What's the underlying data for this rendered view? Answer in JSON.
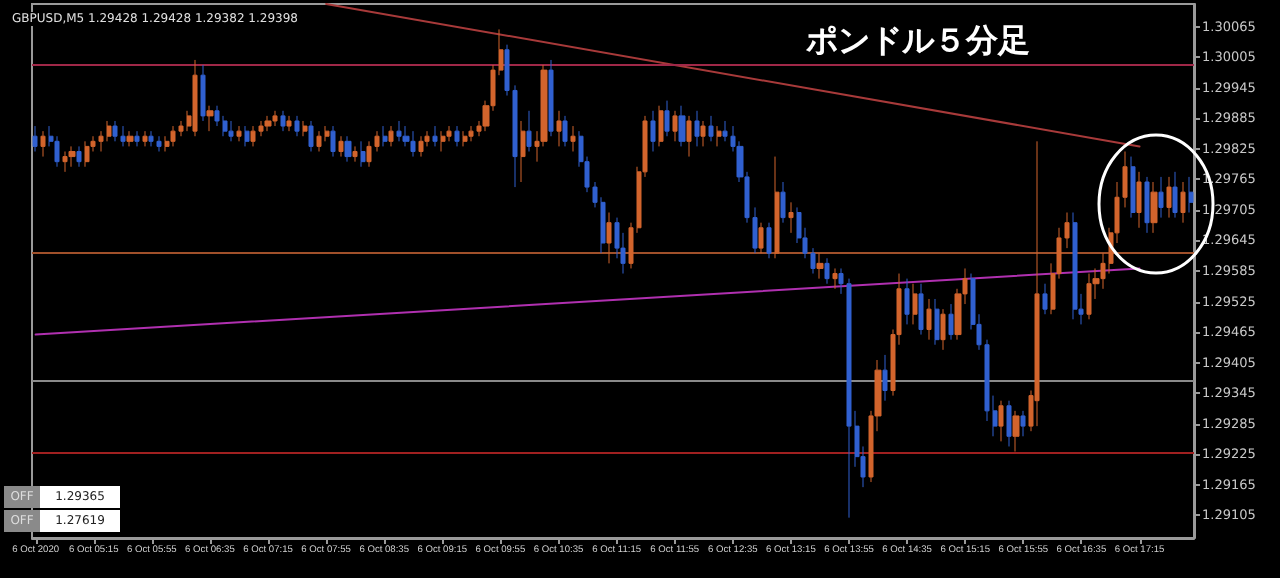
{
  "chart_data": {
    "type": "candlestick",
    "title": "ポンドル５分足",
    "annotations": [
      "GBPUSD,M5  1.29428 1.29428 1.29382 1.29398",
      "OFF 1.29365",
      "OFF 1.27619"
    ],
    "categories": [
      "6 Oct 2020",
      null,
      null,
      null,
      null,
      null,
      null,
      null,
      "6 Oct 05:15",
      null,
      null,
      null,
      null,
      null,
      null,
      null,
      "6 Oct 05:55",
      null,
      null,
      null,
      null,
      null,
      null,
      null,
      "6 Oct 06:35",
      null,
      null,
      null,
      null,
      null,
      null,
      null,
      "6 Oct 07:15",
      null,
      null,
      null,
      null,
      null,
      null,
      null,
      "6 Oct 07:55",
      null,
      null,
      null,
      null,
      null,
      null,
      null,
      "6 Oct 08:35",
      null,
      null,
      null,
      null,
      null,
      null,
      null,
      "6 Oct 09:15",
      null,
      null,
      null,
      null,
      null,
      null,
      null,
      "6 Oct 09:55",
      null,
      null,
      null,
      null,
      null,
      null,
      null,
      "6 Oct 10:35",
      null,
      null,
      null,
      null,
      null,
      null,
      null,
      "6 Oct 11:15",
      null,
      null,
      null,
      null,
      null,
      null,
      null,
      "6 Oct 11:55",
      null,
      null,
      null,
      null,
      null,
      null,
      null,
      "6 Oct 12:35",
      null,
      null,
      null,
      null,
      null,
      null,
      null,
      "6 Oct 13:15",
      null,
      null,
      null,
      null,
      null,
      null,
      null,
      "6 Oct 13:55",
      null,
      null,
      null,
      null,
      null,
      null,
      null,
      "6 Oct 14:35",
      null,
      null,
      null,
      null,
      null,
      null,
      null,
      "6 Oct 15:15",
      null,
      null,
      null,
      null,
      null,
      null,
      null,
      "6 Oct 15:55",
      null,
      null,
      null,
      null,
      null,
      null,
      null,
      "6 Oct 16:35",
      null,
      null,
      null,
      null,
      null,
      null,
      null,
      "6 Oct 17:15",
      null,
      null,
      null,
      null,
      null,
      null,
      null
    ],
    "ohlc": [
      [
        1.2985,
        1.2987,
        1.2982,
        1.2983
      ],
      [
        1.2983,
        1.2986,
        1.2981,
        1.2985
      ],
      [
        1.2985,
        1.2987,
        1.2983,
        1.2984
      ],
      [
        1.2984,
        1.2985,
        1.2979,
        1.298
      ],
      [
        1.298,
        1.2982,
        1.2978,
        1.2981
      ],
      [
        1.2981,
        1.2983,
        1.2979,
        1.2982
      ],
      [
        1.2982,
        1.2983,
        1.2979,
        1.298
      ],
      [
        1.298,
        1.2984,
        1.2979,
        1.2983
      ],
      [
        1.2983,
        1.2985,
        1.2982,
        1.2984
      ],
      [
        1.2984,
        1.2986,
        1.2982,
        1.2985
      ],
      [
        1.2985,
        1.2988,
        1.2984,
        1.2987
      ],
      [
        1.2987,
        1.2988,
        1.2984,
        1.2985
      ],
      [
        1.2985,
        1.2987,
        1.2983,
        1.2984
      ],
      [
        1.2984,
        1.2986,
        1.2983,
        1.2985
      ],
      [
        1.2985,
        1.2986,
        1.2983,
        1.2984
      ],
      [
        1.2984,
        1.2986,
        1.2983,
        1.2985
      ],
      [
        1.2985,
        1.2986,
        1.2983,
        1.2984
      ],
      [
        1.2984,
        1.2985,
        1.2982,
        1.2983
      ],
      [
        1.2983,
        1.2985,
        1.2982,
        1.2984
      ],
      [
        1.2984,
        1.2987,
        1.2983,
        1.2986
      ],
      [
        1.2986,
        1.2988,
        1.2985,
        1.2987
      ],
      [
        1.2987,
        1.299,
        1.2986,
        1.2989
      ],
      [
        1.2986,
        1.3,
        1.2985,
        1.2997
      ],
      [
        1.2997,
        1.2999,
        1.2988,
        1.2989
      ],
      [
        1.2989,
        1.2991,
        1.2986,
        1.299
      ],
      [
        1.299,
        1.2991,
        1.2987,
        1.2988
      ],
      [
        1.2988,
        1.2989,
        1.2985,
        1.2986
      ],
      [
        1.2986,
        1.2988,
        1.2984,
        1.2985
      ],
      [
        1.2985,
        1.2987,
        1.2984,
        1.2986
      ],
      [
        1.2986,
        1.2987,
        1.2983,
        1.2984
      ],
      [
        1.2984,
        1.2987,
        1.2983,
        1.2986
      ],
      [
        1.2986,
        1.2988,
        1.2985,
        1.2987
      ],
      [
        1.2987,
        1.2989,
        1.2986,
        1.2988
      ],
      [
        1.2988,
        1.299,
        1.2987,
        1.2989
      ],
      [
        1.2989,
        1.299,
        1.2986,
        1.2987
      ],
      [
        1.2987,
        1.2989,
        1.2986,
        1.2988
      ],
      [
        1.2988,
        1.2989,
        1.2985,
        1.2986
      ],
      [
        1.2986,
        1.2988,
        1.2985,
        1.2987
      ],
      [
        1.2987,
        1.2988,
        1.2982,
        1.2983
      ],
      [
        1.2983,
        1.2986,
        1.2982,
        1.2985
      ],
      [
        1.2985,
        1.2987,
        1.2984,
        1.2986
      ],
      [
        1.2986,
        1.2987,
        1.2981,
        1.2982
      ],
      [
        1.2982,
        1.2985,
        1.2981,
        1.2984
      ],
      [
        1.2984,
        1.2985,
        1.298,
        1.2981
      ],
      [
        1.2981,
        1.2983,
        1.298,
        1.2982
      ],
      [
        1.2982,
        1.2984,
        1.2979,
        1.298
      ],
      [
        1.298,
        1.2984,
        1.2979,
        1.2983
      ],
      [
        1.2983,
        1.2986,
        1.2982,
        1.2985
      ],
      [
        1.2985,
        1.2987,
        1.2983,
        1.2984
      ],
      [
        1.2984,
        1.2987,
        1.2983,
        1.2986
      ],
      [
        1.2986,
        1.2988,
        1.2984,
        1.2985
      ],
      [
        1.2985,
        1.2987,
        1.2983,
        1.2984
      ],
      [
        1.2984,
        1.2986,
        1.2981,
        1.2982
      ],
      [
        1.2982,
        1.2985,
        1.2981,
        1.2984
      ],
      [
        1.2984,
        1.2986,
        1.2983,
        1.2985
      ],
      [
        1.2985,
        1.2987,
        1.2983,
        1.2984
      ],
      [
        1.2984,
        1.2986,
        1.2982,
        1.2985
      ],
      [
        1.2985,
        1.2987,
        1.2984,
        1.2986
      ],
      [
        1.2986,
        1.2987,
        1.2983,
        1.2984
      ],
      [
        1.2984,
        1.2986,
        1.2983,
        1.2985
      ],
      [
        1.2985,
        1.2987,
        1.2984,
        1.2986
      ],
      [
        1.2986,
        1.2988,
        1.2985,
        1.2987
      ],
      [
        1.2987,
        1.2992,
        1.2986,
        1.2991
      ],
      [
        1.2991,
        1.2999,
        1.299,
        1.2998
      ],
      [
        1.2998,
        1.3006,
        1.2997,
        1.3002
      ],
      [
        1.3002,
        1.3003,
        1.2993,
        1.2994
      ],
      [
        1.2994,
        1.2995,
        1.2975,
        1.2981
      ],
      [
        1.2981,
        1.2988,
        1.2976,
        1.2986
      ],
      [
        1.2986,
        1.299,
        1.2982,
        1.2983
      ],
      [
        1.2983,
        1.2986,
        1.298,
        1.2984
      ],
      [
        1.2984,
        1.2999,
        1.2983,
        1.2998
      ],
      [
        1.2998,
        1.3,
        1.2985,
        1.2986
      ],
      [
        1.2986,
        1.299,
        1.2983,
        1.2988
      ],
      [
        1.2988,
        1.2989,
        1.2983,
        1.2984
      ],
      [
        1.2984,
        1.2987,
        1.2982,
        1.2985
      ],
      [
        1.2985,
        1.2986,
        1.2979,
        1.298
      ],
      [
        1.298,
        1.2981,
        1.2974,
        1.2975
      ],
      [
        1.2975,
        1.2976,
        1.2971,
        1.2972
      ],
      [
        1.2972,
        1.2973,
        1.2962,
        1.2964
      ],
      [
        1.2964,
        1.297,
        1.296,
        1.2968
      ],
      [
        1.2968,
        1.2969,
        1.2961,
        1.2963
      ],
      [
        1.2963,
        1.2966,
        1.2958,
        1.296
      ],
      [
        1.296,
        1.2968,
        1.2959,
        1.2967
      ],
      [
        1.2967,
        1.2979,
        1.2966,
        1.2978
      ],
      [
        1.2978,
        1.2989,
        1.2977,
        1.2988
      ],
      [
        1.2988,
        1.299,
        1.2982,
        1.2984
      ],
      [
        1.2984,
        1.2991,
        1.2983,
        1.299
      ],
      [
        1.299,
        1.2992,
        1.2985,
        1.2986
      ],
      [
        1.2986,
        1.299,
        1.2984,
        1.2989
      ],
      [
        1.2989,
        1.2991,
        1.2983,
        1.2984
      ],
      [
        1.2984,
        1.2989,
        1.2981,
        1.2988
      ],
      [
        1.2988,
        1.299,
        1.2983,
        1.2985
      ],
      [
        1.2985,
        1.2988,
        1.2983,
        1.2987
      ],
      [
        1.2987,
        1.2989,
        1.2984,
        1.2985
      ],
      [
        1.2985,
        1.2987,
        1.2983,
        1.2986
      ],
      [
        1.2986,
        1.2988,
        1.2984,
        1.2985
      ],
      [
        1.2985,
        1.2987,
        1.2982,
        1.2983
      ],
      [
        1.2983,
        1.2984,
        1.2976,
        1.2977
      ],
      [
        1.2977,
        1.2978,
        1.2968,
        1.2969
      ],
      [
        1.2969,
        1.2971,
        1.2962,
        1.2963
      ],
      [
        1.2963,
        1.2968,
        1.2962,
        1.2967
      ],
      [
        1.2967,
        1.2968,
        1.2961,
        1.2962
      ],
      [
        1.2962,
        1.2981,
        1.2961,
        1.2974
      ],
      [
        1.2974,
        1.2976,
        1.2968,
        1.2969
      ],
      [
        1.2969,
        1.2972,
        1.2966,
        1.297
      ],
      [
        1.297,
        1.2971,
        1.2964,
        1.2965
      ],
      [
        1.2965,
        1.2967,
        1.2961,
        1.2962
      ],
      [
        1.2962,
        1.2963,
        1.2958,
        1.2959
      ],
      [
        1.2959,
        1.2962,
        1.2957,
        1.296
      ],
      [
        1.296,
        1.2961,
        1.2956,
        1.2957
      ],
      [
        1.2957,
        1.2959,
        1.2955,
        1.2958
      ],
      [
        1.2958,
        1.2959,
        1.2954,
        1.2956
      ],
      [
        1.2956,
        1.2957,
        1.291,
        1.2928
      ],
      [
        1.2928,
        1.2931,
        1.292,
        1.2922
      ],
      [
        1.2922,
        1.2924,
        1.2916,
        1.2918
      ],
      [
        1.2918,
        1.2931,
        1.2917,
        1.293
      ],
      [
        1.293,
        1.2941,
        1.2927,
        1.2939
      ],
      [
        1.2939,
        1.2942,
        1.2933,
        1.2935
      ],
      [
        1.2935,
        1.2947,
        1.2934,
        1.2946
      ],
      [
        1.2946,
        1.2958,
        1.2944,
        1.2955
      ],
      [
        1.2955,
        1.2957,
        1.2948,
        1.295
      ],
      [
        1.295,
        1.2956,
        1.2948,
        1.2954
      ],
      [
        1.2954,
        1.2956,
        1.2946,
        1.2947
      ],
      [
        1.2947,
        1.2953,
        1.2945,
        1.2951
      ],
      [
        1.2951,
        1.2953,
        1.2944,
        1.2945
      ],
      [
        1.2945,
        1.2951,
        1.2943,
        1.295
      ],
      [
        1.295,
        1.2952,
        1.2945,
        1.2946
      ],
      [
        1.2946,
        1.2955,
        1.2945,
        1.2954
      ],
      [
        1.2954,
        1.2959,
        1.2952,
        1.2957
      ],
      [
        1.2957,
        1.2958,
        1.2947,
        1.2948
      ],
      [
        1.2948,
        1.295,
        1.2943,
        1.2944
      ],
      [
        1.2944,
        1.2945,
        1.2929,
        1.2931
      ],
      [
        1.2931,
        1.2934,
        1.2926,
        1.2928
      ],
      [
        1.2928,
        1.2933,
        1.2925,
        1.2932
      ],
      [
        1.2932,
        1.2933,
        1.2924,
        1.2926
      ],
      [
        1.2926,
        1.2931,
        1.2923,
        1.293
      ],
      [
        1.293,
        1.2931,
        1.2926,
        1.2928
      ],
      [
        1.2928,
        1.2935,
        1.2927,
        1.2934
      ],
      [
        1.2933,
        1.2984,
        1.2928,
        1.2954
      ],
      [
        1.2954,
        1.2956,
        1.295,
        1.2951
      ],
      [
        1.2951,
        1.296,
        1.295,
        1.2958
      ],
      [
        1.2958,
        1.2967,
        1.2957,
        1.2965
      ],
      [
        1.2965,
        1.297,
        1.2963,
        1.2968
      ],
      [
        1.2968,
        1.297,
        1.2949,
        1.2951
      ],
      [
        1.2951,
        1.2954,
        1.2948,
        1.295
      ],
      [
        1.295,
        1.2958,
        1.2949,
        1.2956
      ],
      [
        1.2956,
        1.2959,
        1.2953,
        1.2957
      ],
      [
        1.2957,
        1.2962,
        1.2955,
        1.296
      ],
      [
        1.296,
        1.2967,
        1.2958,
        1.2966
      ],
      [
        1.2966,
        1.2976,
        1.2964,
        1.2973
      ],
      [
        1.2973,
        1.2982,
        1.2971,
        1.2979
      ],
      [
        1.2979,
        1.2981,
        1.2969,
        1.297
      ],
      [
        1.297,
        1.2978,
        1.2967,
        1.2976
      ],
      [
        1.2976,
        1.2977,
        1.2966,
        1.2968
      ],
      [
        1.2968,
        1.2976,
        1.2966,
        1.2974
      ],
      [
        1.2974,
        1.2977,
        1.2969,
        1.2971
      ],
      [
        1.2971,
        1.2977,
        1.2969,
        1.2975
      ],
      [
        1.2975,
        1.2978,
        1.2969,
        1.297
      ],
      [
        1.297,
        1.2976,
        1.2968,
        1.2974
      ],
      [
        1.2974,
        1.2977,
        1.297,
        1.2972
      ]
    ],
    "colors": [
      "#3060d0",
      "#d2642c",
      "#3060d0",
      "#3060d0",
      "#d2642c",
      "#d2642c",
      "#3060d0",
      "#d2642c",
      "#d2642c",
      "#d2642c",
      "#d2642c",
      "#3060d0",
      "#3060d0",
      "#d2642c",
      "#3060d0",
      "#d2642c",
      "#3060d0",
      "#3060d0",
      "#d2642c",
      "#d2642c",
      "#d2642c",
      "#d2642c",
      "#d2642c",
      "#3060d0",
      "#d2642c",
      "#3060d0",
      "#3060d0",
      "#3060d0",
      "#d2642c",
      "#3060d0",
      "#d2642c",
      "#d2642c",
      "#d2642c",
      "#d2642c",
      "#3060d0",
      "#d2642c",
      "#3060d0",
      "#d2642c",
      "#3060d0",
      "#d2642c",
      "#d2642c",
      "#3060d0",
      "#d2642c",
      "#3060d0",
      "#d2642c",
      "#3060d0",
      "#d2642c",
      "#d2642c",
      "#3060d0",
      "#d2642c",
      "#3060d0",
      "#3060d0",
      "#3060d0",
      "#d2642c",
      "#d2642c",
      "#3060d0",
      "#d2642c",
      "#d2642c",
      "#3060d0",
      "#d2642c",
      "#d2642c",
      "#d2642c",
      "#d2642c",
      "#d2642c",
      "#d2642c",
      "#3060d0",
      "#3060d0",
      "#d2642c",
      "#3060d0",
      "#d2642c",
      "#d2642c",
      "#3060d0",
      "#d2642c",
      "#3060d0",
      "#d2642c",
      "#3060d0",
      "#3060d0",
      "#3060d0",
      "#3060d0",
      "#d2642c",
      "#3060d0",
      "#3060d0",
      "#d2642c",
      "#d2642c",
      "#d2642c",
      "#3060d0",
      "#d2642c",
      "#3060d0",
      "#d2642c",
      "#3060d0",
      "#d2642c",
      "#3060d0",
      "#d2642c",
      "#3060d0",
      "#d2642c",
      "#3060d0",
      "#3060d0",
      "#3060d0",
      "#3060d0",
      "#3060d0",
      "#d2642c",
      "#3060d0",
      "#d2642c",
      "#3060d0",
      "#d2642c",
      "#3060d0",
      "#3060d0",
      "#3060d0",
      "#d2642c",
      "#3060d0",
      "#d2642c",
      "#3060d0",
      "#3060d0",
      "#3060d0",
      "#3060d0",
      "#d2642c",
      "#d2642c",
      "#3060d0",
      "#d2642c",
      "#d2642c",
      "#3060d0",
      "#d2642c",
      "#3060d0",
      "#d2642c",
      "#3060d0",
      "#d2642c",
      "#3060d0",
      "#d2642c",
      "#d2642c",
      "#3060d0",
      "#3060d0",
      "#3060d0",
      "#3060d0",
      "#d2642c",
      "#3060d0",
      "#d2642c",
      "#3060d0",
      "#d2642c",
      "#d2642c",
      "#3060d0",
      "#d2642c",
      "#d2642c",
      "#d2642c",
      "#3060d0",
      "#3060d0",
      "#d2642c",
      "#d2642c",
      "#d2642c",
      "#d2642c",
      "#d2642c",
      "#d2642c",
      "#3060d0",
      "#d2642c",
      "#3060d0",
      "#d2642c",
      "#3060d0",
      "#d2642c",
      "#3060d0",
      "#d2642c",
      "#3060d0"
    ],
    "series": [
      {
        "type": "line",
        "x": [
          "6 Oct 07:55",
          "6 Oct 17:15"
        ],
        "values": [
          1.3011,
          1.2983
        ],
        "color": "#a83a3a"
      },
      {
        "type": "line",
        "x": [
          "6 Oct 2020",
          "6 Oct 17:15"
        ],
        "values": [
          1.2946,
          1.2959
        ],
        "color": "#b030b0"
      }
    ],
    "ref_lines": [
      {
        "axis": "y",
        "value": 1.2999,
        "color": "#a02848"
      },
      {
        "axis": "y",
        "value": 1.2962,
        "color": "#a0502a"
      },
      {
        "axis": "y",
        "value": 1.2937,
        "color": "#8a8a8a"
      },
      {
        "axis": "y",
        "value": 1.2923,
        "color": "#a02020"
      }
    ],
    "ylim": [
      1.2906,
      1.3011
    ],
    "yticks": [
      1.29105,
      1.29165,
      1.29225,
      1.29285,
      1.29345,
      1.29405,
      1.29465,
      1.29525,
      1.29585,
      1.29645,
      1.29705,
      1.29765,
      1.29825,
      1.29885,
      1.29945,
      1.30005,
      1.30065
    ],
    "grid": false
  }
}
